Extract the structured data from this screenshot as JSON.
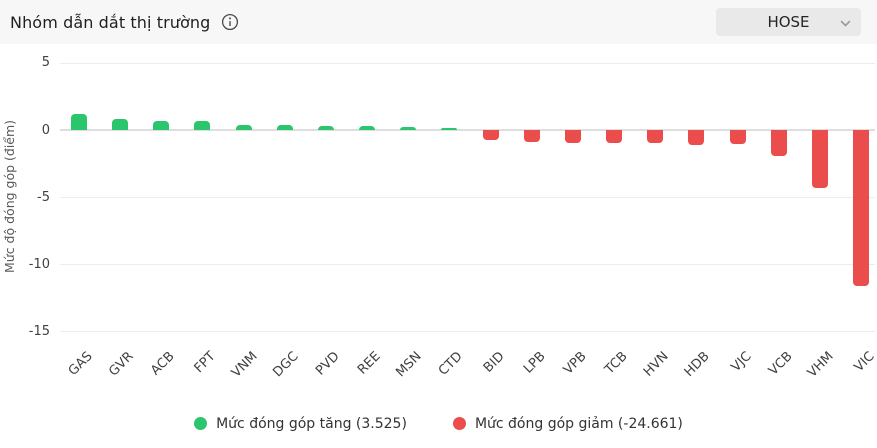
{
  "header": {
    "title": "Nhóm dẫn dắt thị trường",
    "info_icon": "info-circle-icon",
    "exchange_selector": {
      "value": "HOSE",
      "chevron_icon": "chevron-down-icon"
    }
  },
  "colors": {
    "up": "#2bc56d",
    "down": "#eb4d4d",
    "grid": "#ececec",
    "zero_line": "#dedede",
    "header_bg": "#f7f7f7",
    "dropdown_bg": "#e9e9e9",
    "text_primary": "#262626",
    "text_secondary": "#595959"
  },
  "chart_data": {
    "type": "bar",
    "title": "Nhóm dẫn dắt thị trường",
    "xlabel": "",
    "ylabel": "Mức độ đóng góp (điểm)",
    "ylim": [
      -15,
      5
    ],
    "yticks": [
      5,
      0,
      -5,
      -10,
      -15
    ],
    "grid": true,
    "legend_position": "bottom",
    "categories": [
      "GAS",
      "GVR",
      "ACB",
      "FPT",
      "VNM",
      "DGC",
      "PVD",
      "REE",
      "MSN",
      "CTD",
      "BID",
      "LPB",
      "VPB",
      "TCB",
      "HVN",
      "HDB",
      "VJC",
      "VCB",
      "VHM",
      "VIC"
    ],
    "values": [
      1.2,
      0.85,
      0.65,
      0.65,
      0.4,
      0.4,
      0.28,
      0.27,
      0.24,
      0.15,
      -0.75,
      -0.9,
      -1.0,
      -0.95,
      -0.95,
      -1.1,
      -1.05,
      -1.95,
      -4.35,
      -11.65
    ],
    "series": [
      {
        "name": "Mức đóng góp tăng",
        "total": 3.525,
        "color": "#2bc56d"
      },
      {
        "name": "Mức đóng góp giảm",
        "total": -24.661,
        "color": "#eb4d4d"
      }
    ]
  },
  "legend": {
    "up_label": "Mức đóng góp tăng (3.525)",
    "down_label": "Mức đóng góp giảm (-24.661)",
    "up_icon": "legend-dot-green",
    "down_icon": "legend-dot-red"
  }
}
